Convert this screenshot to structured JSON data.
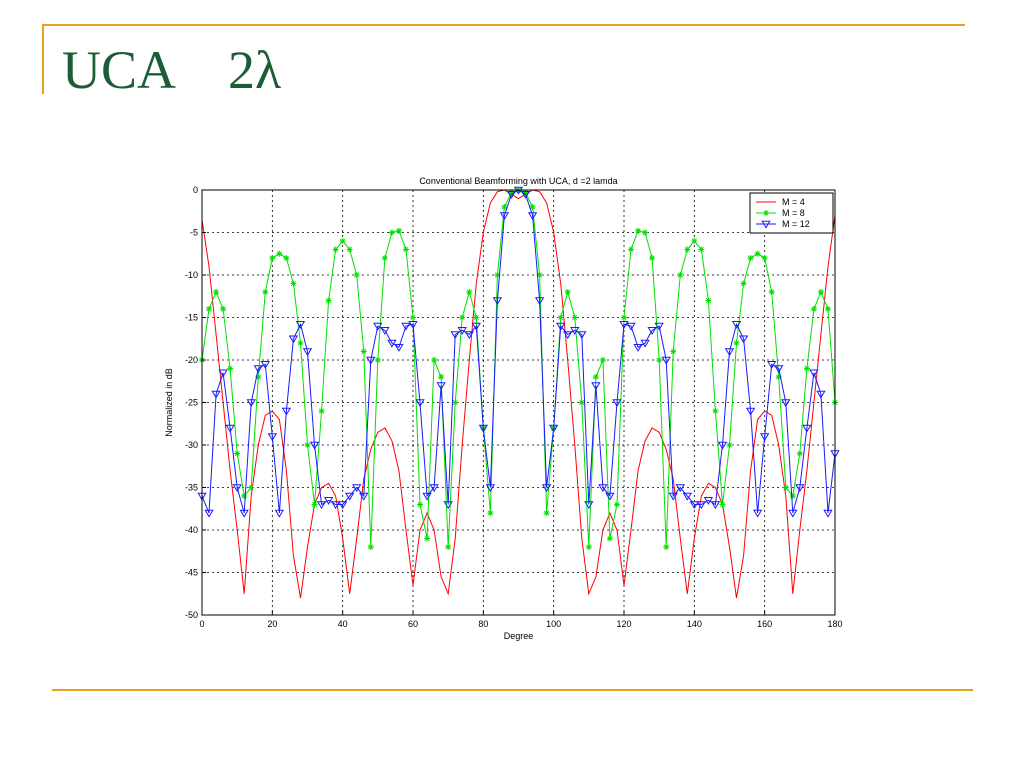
{
  "slide": {
    "title": "UCA",
    "title_symbol": "2λ"
  },
  "colors": {
    "accent_rule": "#e6a01e",
    "title": "#1b5e35"
  },
  "chart_data": {
    "type": "line",
    "title": "Conventional Beamforming with UCA,  d =2 lamda",
    "xlabel": "Degree",
    "ylabel": "Normalized in dB",
    "xlim": [
      0,
      180
    ],
    "ylim": [
      -50,
      0
    ],
    "xticks": [
      "0",
      "20",
      "40",
      "60",
      "80",
      "100",
      "120",
      "140",
      "160",
      "180"
    ],
    "yticks": [
      "0",
      "-5",
      "-10",
      "-15",
      "-20",
      "-25",
      "-30",
      "-35",
      "-40",
      "-45",
      "-50"
    ],
    "grid": true,
    "legend_position": "top-right",
    "series": [
      {
        "name": "M = 4",
        "color": "#ff0000",
        "marker": "none",
        "x": [
          0,
          2,
          4,
          6,
          8,
          10,
          12,
          14,
          16,
          18,
          20,
          22,
          24,
          26,
          28,
          30,
          32,
          34,
          36,
          38,
          40,
          42,
          44,
          46,
          48,
          50,
          52,
          54,
          56,
          58,
          60,
          62,
          64,
          66,
          68,
          70,
          72,
          74,
          76,
          78,
          80,
          82,
          84,
          86,
          88,
          90,
          92,
          94,
          96,
          98,
          100,
          102,
          104,
          106,
          108,
          110,
          112,
          114,
          116,
          118,
          120,
          122,
          124,
          126,
          128,
          130,
          132,
          134,
          136,
          138,
          140,
          142,
          144,
          146,
          148,
          150,
          152,
          154,
          156,
          158,
          160,
          162,
          164,
          166,
          168,
          170,
          172,
          174,
          176,
          178,
          180
        ],
        "y": [
          -3.5,
          -9,
          -17,
          -25,
          -33,
          -40,
          -47.5,
          -36,
          -30,
          -26.5,
          -26,
          -27,
          -33,
          -43,
          -48,
          -42,
          -37,
          -35,
          -34.5,
          -36,
          -41,
          -47.5,
          -41,
          -34,
          -30.5,
          -28.5,
          -28,
          -29.5,
          -33,
          -40,
          -46.5,
          -40,
          -38,
          -40,
          -45.5,
          -47.5,
          -41,
          -30,
          -20,
          -11,
          -5,
          -1.5,
          -0.2,
          0,
          -0.5,
          -1,
          -0.5,
          0,
          -0.2,
          -1.5,
          -5,
          -11,
          -20,
          -30,
          -41,
          -47.5,
          -45.5,
          -40,
          -38,
          -40,
          -46.5,
          -40,
          -33,
          -29.5,
          -28,
          -28.5,
          -30.5,
          -34,
          -41,
          -47.5,
          -41,
          -36,
          -34.5,
          -35,
          -37,
          -42,
          -48,
          -43,
          -33,
          -27,
          -26,
          -26.5,
          -30,
          -36,
          -47.5,
          -40,
          -33,
          -25,
          -17,
          -9,
          -3
        ]
      },
      {
        "name": "M = 8",
        "color": "#00e000",
        "marker": "star",
        "x": [
          0,
          2,
          4,
          6,
          8,
          10,
          12,
          14,
          16,
          18,
          20,
          22,
          24,
          26,
          28,
          30,
          32,
          34,
          36,
          38,
          40,
          42,
          44,
          46,
          48,
          50,
          52,
          54,
          56,
          58,
          60,
          62,
          64,
          66,
          68,
          70,
          72,
          74,
          76,
          78,
          80,
          82,
          84,
          86,
          88,
          90,
          92,
          94,
          96,
          98,
          100,
          102,
          104,
          106,
          108,
          110,
          112,
          114,
          116,
          118,
          120,
          122,
          124,
          126,
          128,
          130,
          132,
          134,
          136,
          138,
          140,
          142,
          144,
          146,
          148,
          150,
          152,
          154,
          156,
          158,
          160,
          162,
          164,
          166,
          168,
          170,
          172,
          174,
          176,
          178,
          180
        ],
        "y": [
          -20,
          -14,
          -12,
          -14,
          -21,
          -31,
          -36,
          -35,
          -22,
          -12,
          -8,
          -7.5,
          -8,
          -11,
          -18,
          -30,
          -37,
          -26,
          -13,
          -7,
          -6,
          -7,
          -10,
          -19,
          -42,
          -20,
          -8,
          -5,
          -4.8,
          -7,
          -15,
          -37,
          -41,
          -20,
          -22,
          -42,
          -25,
          -15,
          -12,
          -15,
          -28,
          -38,
          -10,
          -2,
          -0.3,
          0,
          -0.3,
          -2,
          -10,
          -38,
          -28,
          -15,
          -12,
          -15,
          -25,
          -42,
          -22,
          -20,
          -41,
          -37,
          -15,
          -7,
          -4.8,
          -5,
          -8,
          -20,
          -42,
          -19,
          -10,
          -7,
          -6,
          -7,
          -13,
          -26,
          -37,
          -30,
          -18,
          -11,
          -8,
          -7.5,
          -8,
          -12,
          -22,
          -35,
          -36,
          -31,
          -21,
          -14,
          -12,
          -14,
          -25
        ]
      },
      {
        "name": "M = 12",
        "color": "#1a1aff",
        "marker": "triangle-down",
        "x": [
          0,
          2,
          4,
          6,
          8,
          10,
          12,
          14,
          16,
          18,
          20,
          22,
          24,
          26,
          28,
          30,
          32,
          34,
          36,
          38,
          40,
          42,
          44,
          46,
          48,
          50,
          52,
          54,
          56,
          58,
          60,
          62,
          64,
          66,
          68,
          70,
          72,
          74,
          76,
          78,
          80,
          82,
          84,
          86,
          88,
          90,
          92,
          94,
          96,
          98,
          100,
          102,
          104,
          106,
          108,
          110,
          112,
          114,
          116,
          118,
          120,
          122,
          124,
          126,
          128,
          130,
          132,
          134,
          136,
          138,
          140,
          142,
          144,
          146,
          148,
          150,
          152,
          154,
          156,
          158,
          160,
          162,
          164,
          166,
          168,
          170,
          172,
          174,
          176,
          178,
          180
        ],
        "y": [
          -36,
          -38,
          -24,
          -21.5,
          -28,
          -35,
          -38,
          -25,
          -21,
          -20.5,
          -29,
          -38,
          -26,
          -17.5,
          -15.8,
          -19,
          -30,
          -37,
          -36.5,
          -37,
          -37,
          -36,
          -35,
          -36,
          -20,
          -16,
          -16.5,
          -18,
          -18.5,
          -16,
          -15.8,
          -25,
          -36,
          -35,
          -23,
          -37,
          -17,
          -16.5,
          -17,
          -16,
          -28,
          -35,
          -13,
          -3,
          -0.5,
          0,
          -0.5,
          -3,
          -13,
          -35,
          -28,
          -16,
          -17,
          -16.5,
          -17,
          -37,
          -23,
          -35,
          -36,
          -25,
          -15.8,
          -16,
          -18.5,
          -18,
          -16.5,
          -16,
          -20,
          -36,
          -35,
          -36,
          -37,
          -37,
          -36.5,
          -37,
          -30,
          -19,
          -15.8,
          -17.5,
          -26,
          -38,
          -29,
          -20.5,
          -21,
          -25,
          -38,
          -35,
          -28,
          -21.5,
          -24,
          -38,
          -31
        ]
      }
    ]
  }
}
